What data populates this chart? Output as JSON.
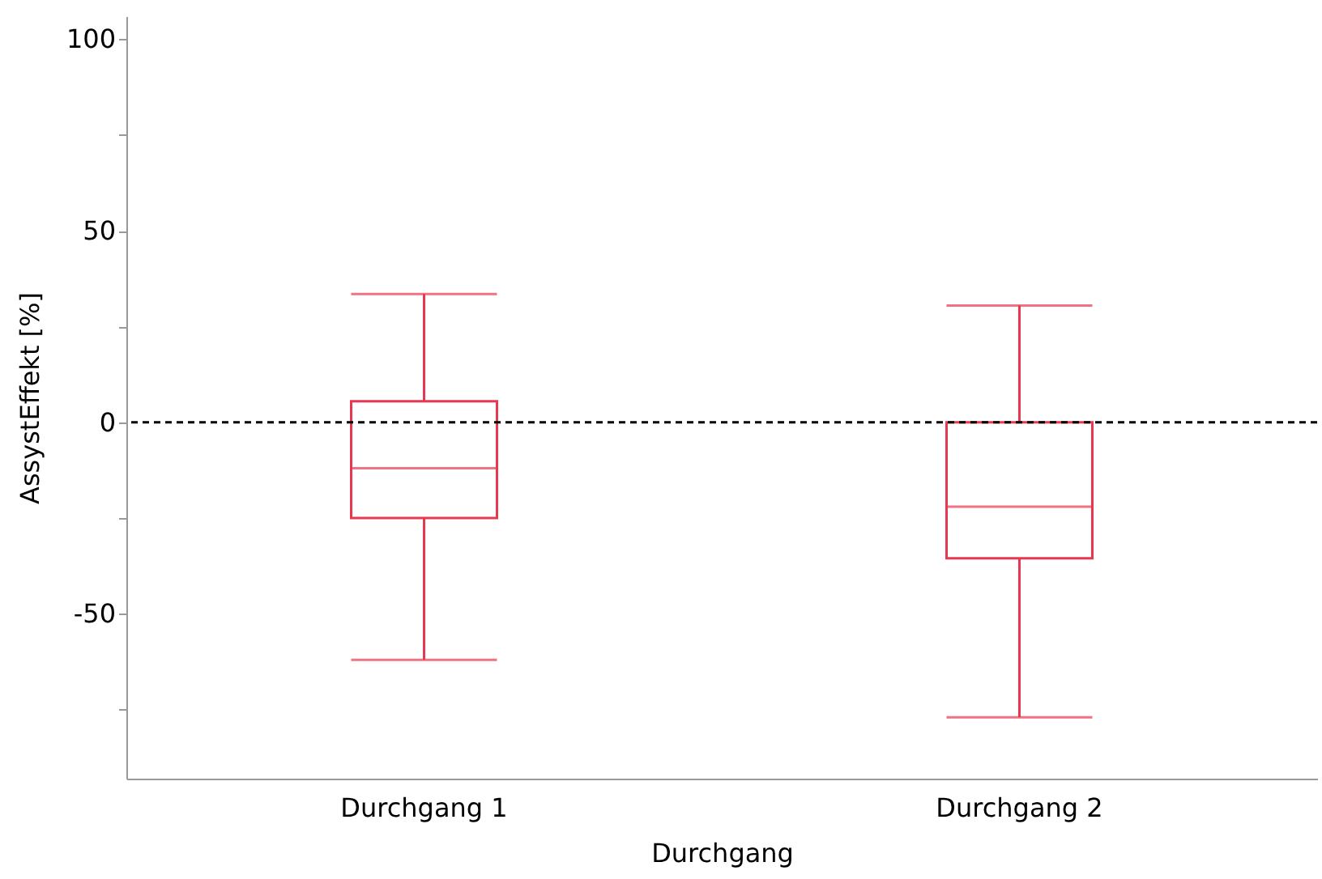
{
  "chart_data": {
    "type": "box",
    "xlabel": "Durchgang",
    "ylabel": "AssystEffekt [%]",
    "categories": [
      "Durchgang 1",
      "Durchgang 2"
    ],
    "series": [
      {
        "color": "#e8384f",
        "boxes": [
          {
            "low": -62,
            "q1": -25,
            "median": -12,
            "q3": 5.5,
            "high": 33.5
          },
          {
            "low": -77,
            "q1": -35.5,
            "median": -22,
            "q3": 0,
            "high": 30.5
          }
        ]
      }
    ],
    "ylim": [
      -93,
      106
    ],
    "yticks": [
      {
        "value": -75,
        "label": null
      },
      -50,
      {
        "value": -25,
        "label": null
      },
      0,
      {
        "value": 25,
        "label": null
      },
      50,
      {
        "value": 75,
        "label": null
      },
      100
    ],
    "ref_lines": [
      {
        "axis": "y",
        "value": 0,
        "label": null,
        "color": "#000000",
        "line_style": "dashed"
      }
    ],
    "grid": false
  }
}
